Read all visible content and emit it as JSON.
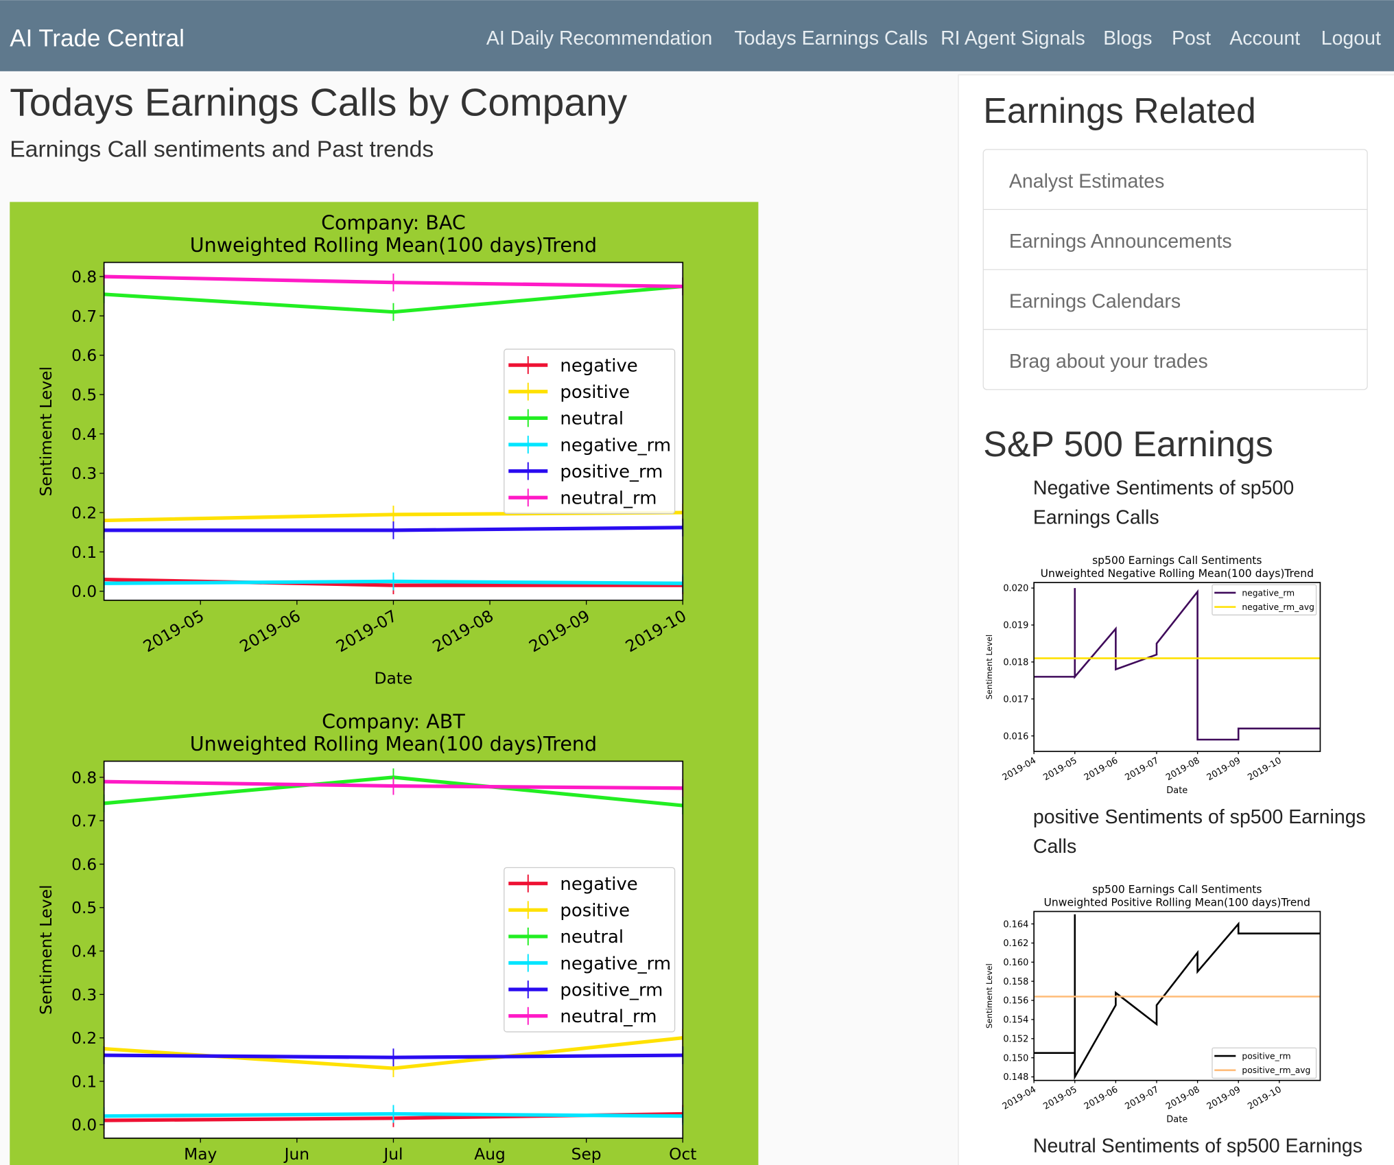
{
  "nav": {
    "brand": "AI Trade Central",
    "links": [
      "AI Daily Recommendation",
      "Todays Earnings Calls",
      "RI Agent Signals",
      "Blogs",
      "Post",
      "Account",
      "Logout"
    ]
  },
  "main": {
    "title": "Todays Earnings Calls by Company",
    "subtitle": "Earnings Call sentiments and Past trends",
    "charts": [
      {
        "type": "line",
        "title": "Company: BAC",
        "subtitle": "Unweighted Rolling Mean(100 days)Trend",
        "xlabel": "Date",
        "ylabel": "Sentiment Level",
        "legend": "center right",
        "x": [
          "2019-04",
          "2019-07",
          "2019-10"
        ],
        "xlim": [
          "2019-04",
          "2019-10"
        ],
        "xticks": [
          "2019-05",
          "2019-06",
          "2019-07",
          "2019-08",
          "2019-09",
          "2019-10"
        ],
        "ylim": [
          -0.023,
          0.836
        ],
        "yticks": [
          {
            "value": 0,
            "label": "0.0"
          },
          0.1,
          0.2,
          0.3,
          0.4,
          0.5,
          0.6,
          0.7,
          0.8
        ],
        "series": [
          {
            "name": "negative",
            "color": "#ee1133",
            "values": [
              0.03,
              0.015,
              0.015
            ]
          },
          {
            "name": "positive",
            "color": "#ffe100",
            "values": [
              0.18,
              0.195,
              0.2
            ]
          },
          {
            "name": "neutral",
            "color": "#22ee22",
            "values": [
              0.755,
              0.71,
              0.775
            ]
          },
          {
            "name": "negative_rm",
            "color": "#00e5ff",
            "values": [
              0.02,
              0.025,
              0.02
            ]
          },
          {
            "name": "positive_rm",
            "color": "#2a0cf0",
            "values": [
              0.155,
              0.155,
              0.162
            ]
          },
          {
            "name": "neutral_rm",
            "color": "#ff1ac6",
            "values": [
              0.8,
              0.785,
              0.775
            ]
          }
        ]
      },
      {
        "type": "line",
        "title": "Company: ABT",
        "subtitle": "Unweighted Rolling Mean(100 days)Trend",
        "ylabel": "Sentiment Level",
        "legend": "center right",
        "x": [
          "2019-04",
          "2019-07",
          "2019-10"
        ],
        "xlim": [
          "2019-04",
          "2019-10"
        ],
        "xticks": [
          {
            "value": "2019-05",
            "label": "May"
          },
          {
            "value": "2019-06",
            "label": "Jun"
          },
          {
            "value": "2019-07",
            "label": "Jul"
          },
          {
            "value": "2019-08",
            "label": "Aug"
          },
          {
            "value": "2019-09",
            "label": "Sep"
          },
          {
            "value": "2019-10",
            "label": "Oct"
          }
        ],
        "ylim": [
          -0.031,
          0.837
        ],
        "yticks": [
          {
            "value": 0,
            "label": "0.0"
          },
          0.1,
          0.2,
          0.3,
          0.4,
          0.5,
          0.6,
          0.7,
          0.8
        ],
        "series": [
          {
            "name": "negative",
            "color": "#ee1133",
            "values": [
              0.01,
              0.015,
              0.025
            ]
          },
          {
            "name": "positive",
            "color": "#ffe100",
            "values": [
              0.175,
              0.13,
              0.2
            ]
          },
          {
            "name": "neutral",
            "color": "#22ee22",
            "values": [
              0.74,
              0.8,
              0.735
            ]
          },
          {
            "name": "negative_rm",
            "color": "#00e5ff",
            "values": [
              0.02,
              0.025,
              0.02
            ]
          },
          {
            "name": "positive_rm",
            "color": "#2a0cf0",
            "values": [
              0.16,
              0.155,
              0.16
            ]
          },
          {
            "name": "neutral_rm",
            "color": "#ff1ac6",
            "values": [
              0.79,
              0.78,
              0.775
            ]
          }
        ]
      }
    ]
  },
  "sidebar": {
    "title": "Earnings Related",
    "links": [
      "Analyst Estimates",
      "Earnings Announcements",
      "Earnings Calendars",
      "Brag about your trades"
    ],
    "section_title": "S&P 500 Earnings",
    "items": [
      {
        "caption": "Negative Sentiments of sp500 Earnings Calls",
        "chart": {
          "type": "line",
          "title": "sp500 Earnings Call Sentiments",
          "subtitle": "Unweighted Negative Rolling Mean(100 days)Trend",
          "xlabel": "Date",
          "ylabel": "Sentiment Level",
          "legend": "upper right",
          "xlim": [
            "2019-04",
            "2019-11"
          ],
          "xticks": [
            "2019-04",
            "2019-05",
            "2019-06",
            "2019-07",
            "2019-08",
            "2019-09",
            "2019-10"
          ],
          "ylim": [
            0.01558,
            0.02015
          ],
          "yticks": [
            0.016,
            0.017,
            0.018,
            0.019,
            {
              "value": 0.02,
              "label": "0.020"
            }
          ],
          "series": [
            {
              "name": "negative_rm",
              "color": "#3f0a5a",
              "x": [
                "2019-04",
                "2019-05",
                "2019-05",
                "2019-05",
                "2019-06",
                "2019-06",
                "2019-07",
                "2019-07",
                "2019-08",
                "2019-08",
                "2019-09",
                "2019-09",
                "2019-11"
              ],
              "values": [
                0.0176,
                0.0176,
                0.02,
                0.0176,
                0.0189,
                0.0178,
                0.0182,
                0.0185,
                0.0199,
                0.0159,
                0.0159,
                0.0162,
                0.0162
              ]
            },
            {
              "name": "negative_rm_avg",
              "color": "#ffe100",
              "x": [
                "2019-04",
                "2019-11"
              ],
              "values": [
                0.0181,
                0.0181
              ]
            }
          ]
        }
      },
      {
        "caption": "positive Sentiments of sp500 Earnings Calls",
        "chart": {
          "type": "line",
          "title": "sp500 Earnings Call Sentiments",
          "subtitle": "Unweighted Positive Rolling Mean(100 days)Trend",
          "xlabel": "Date",
          "ylabel": "Sentiment Level",
          "legend": "lower right",
          "xlim": [
            "2019-04",
            "2019-11"
          ],
          "xticks": [
            "2019-04",
            "2019-05",
            "2019-06",
            "2019-07",
            "2019-08",
            "2019-09",
            "2019-10"
          ],
          "ylim": [
            0.14763,
            0.1653
          ],
          "yticks": [
            0.148,
            {
              "value": 0.15,
              "label": "0.150"
            },
            0.152,
            0.154,
            0.156,
            0.158,
            {
              "value": 0.16,
              "label": "0.160"
            },
            0.162,
            0.164
          ],
          "series": [
            {
              "name": "positive_rm",
              "color": "#000000",
              "x": [
                "2019-04",
                "2019-05",
                "2019-05",
                "2019-05",
                "2019-06",
                "2019-06",
                "2019-07",
                "2019-07",
                "2019-08",
                "2019-08",
                "2019-09",
                "2019-09",
                "2019-11"
              ],
              "values": [
                0.1505,
                0.1505,
                0.165,
                0.148,
                0.1555,
                0.1568,
                0.1535,
                0.1555,
                0.161,
                0.159,
                0.164,
                0.163,
                0.163
              ]
            },
            {
              "name": "positive_rm_avg",
              "color": "#ffbb77",
              "x": [
                "2019-04",
                "2019-11"
              ],
              "values": [
                0.1564,
                0.1564
              ]
            }
          ]
        }
      }
    ],
    "last_caption": "Neutral Sentiments of sp500 Earnings"
  }
}
